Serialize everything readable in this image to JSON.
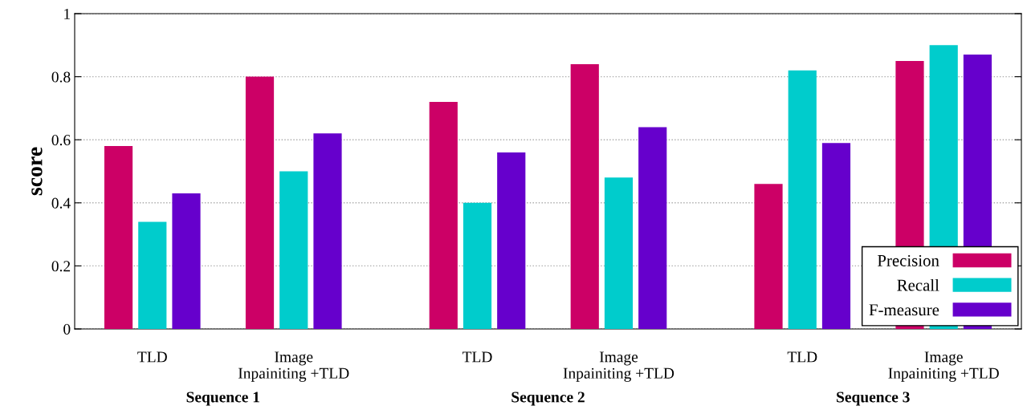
{
  "chart_data": {
    "type": "bar",
    "ylabel": "score",
    "categories": [
      "TLD",
      "Image\nInpainiting +TLD",
      "TLD",
      "Image\nInpainiting +TLD",
      "TLD",
      "Image\nInpainiting +TLD"
    ],
    "series": [
      {
        "name": "Precision",
        "color": "#cc0066",
        "values": [
          0.58,
          0.8,
          0.72,
          0.84,
          0.46,
          0.85
        ]
      },
      {
        "name": "Recall",
        "color": "#00cccc",
        "values": [
          0.34,
          0.5,
          0.4,
          0.48,
          0.82,
          0.9
        ]
      },
      {
        "name": "F-measure",
        "color": "#6600cc",
        "values": [
          0.43,
          0.62,
          0.56,
          0.64,
          0.59,
          0.87
        ]
      }
    ],
    "annotations": [
      "Sequence 1",
      "Sequence 2",
      "Sequence 3"
    ],
    "ylim": [
      0,
      1
    ],
    "yticks": [
      0,
      0.2,
      0.4,
      0.6,
      0.8,
      1
    ],
    "grid": "y",
    "legend": "bottom right"
  }
}
